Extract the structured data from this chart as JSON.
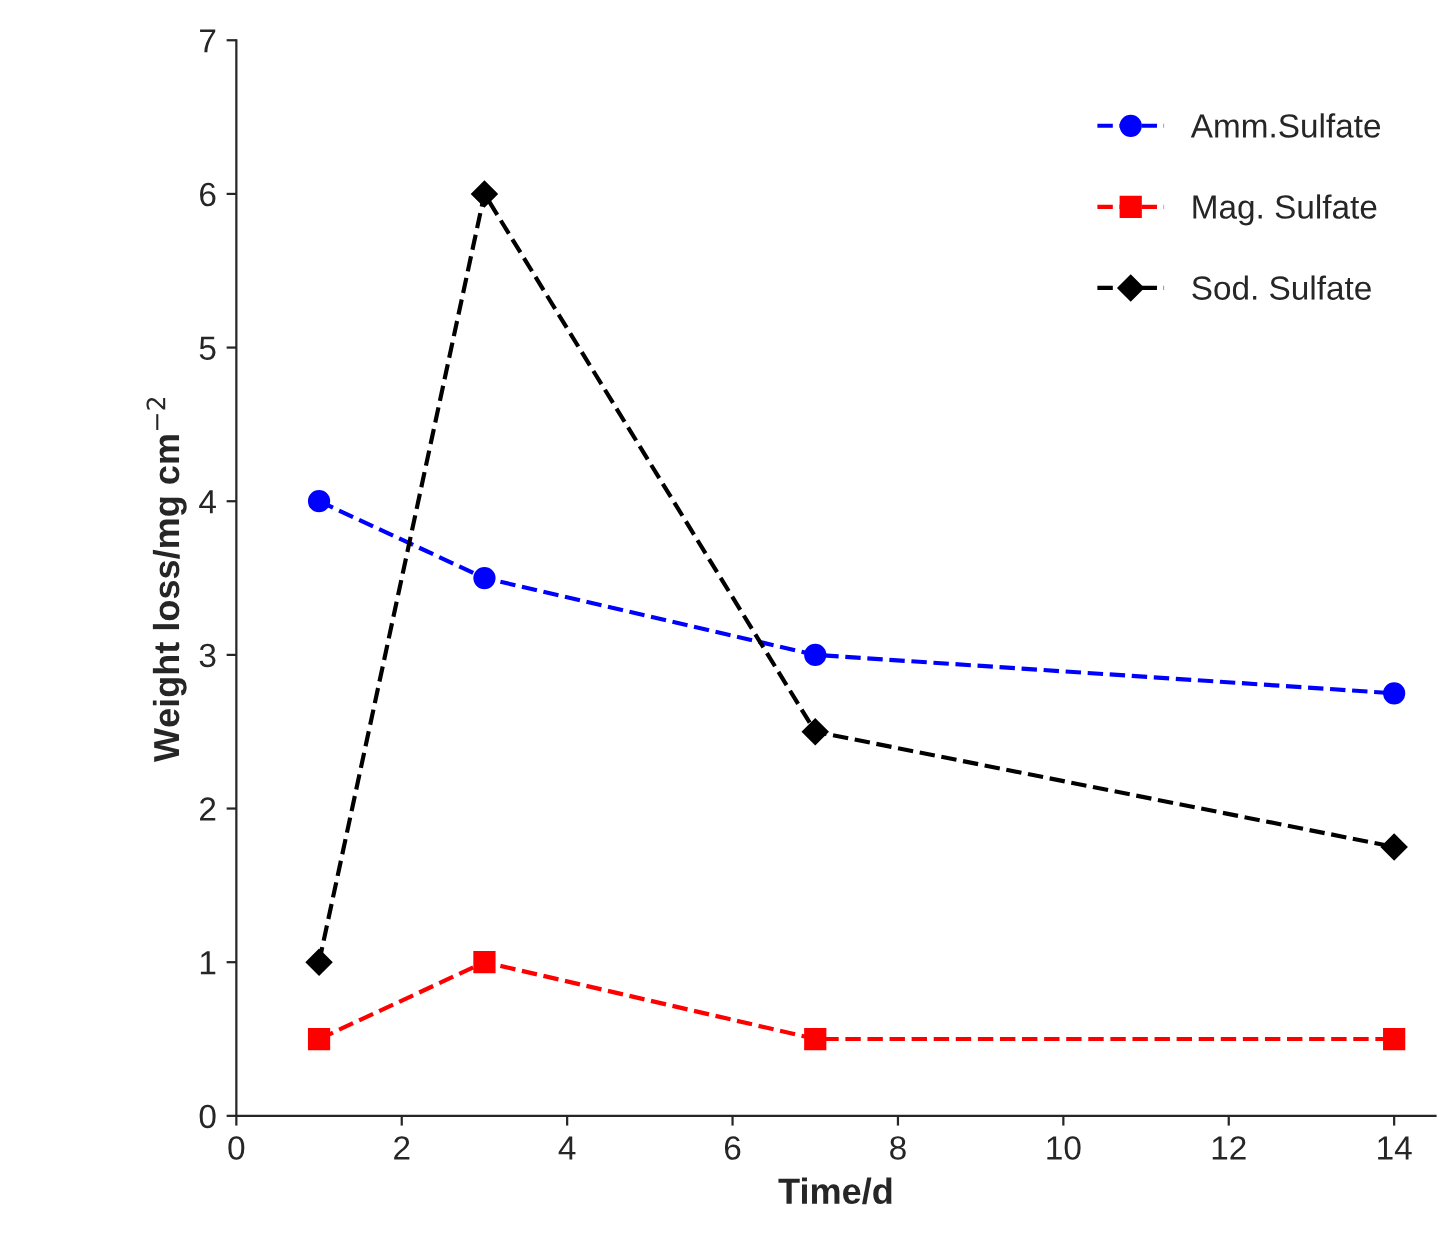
{
  "chart_data": {
    "type": "line",
    "xlabel": "Time/d",
    "ylabel": "Weight loss/mg cm$^{−2}$",
    "xlim": [
      0,
      14.5
    ],
    "xticks": [
      0,
      2,
      4,
      6,
      8,
      10,
      12,
      14
    ],
    "ylim": [
      0,
      7
    ],
    "yticks": [
      0,
      1,
      2,
      3,
      4,
      5,
      6,
      7
    ],
    "x": [
      1,
      3,
      7,
      14
    ],
    "grid": false,
    "legend": "top right",
    "line_style": "dashed",
    "series": [
      {
        "name": "Amm.Sulfate",
        "color": "#0000ff",
        "marker": "circle",
        "values": [
          4,
          3.5,
          3,
          2.75
        ]
      },
      {
        "name": "Mag. Sulfate",
        "color": "#ff0000",
        "marker": "square",
        "values": [
          0.5,
          1,
          0.5,
          0.5
        ]
      },
      {
        "name": "Sod. Sulfate",
        "color": "#000000",
        "marker": "diamond",
        "values": [
          1,
          6,
          2.5,
          1.75
        ]
      }
    ]
  }
}
